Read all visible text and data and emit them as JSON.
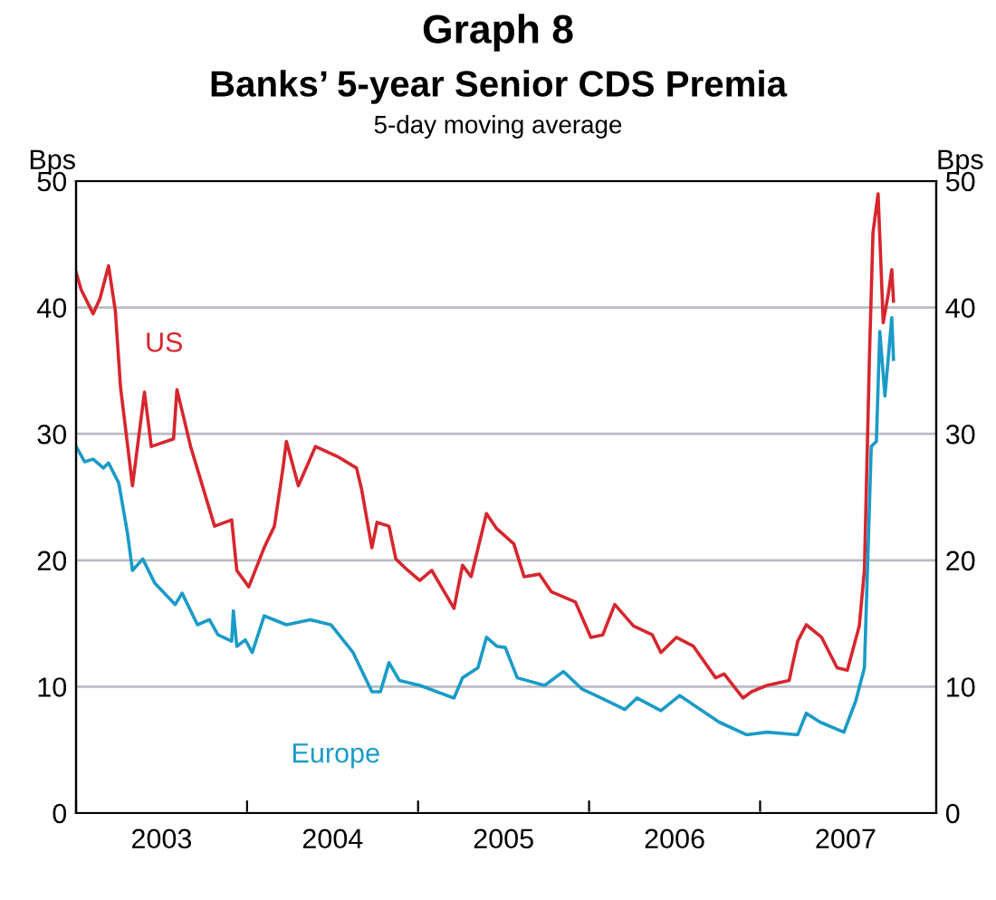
{
  "chart_data": {
    "type": "line",
    "title": "Graph 8",
    "subtitle": "Banks’ 5-year Senior CDS Premia",
    "annotations": [
      "5-day moving average"
    ],
    "ylabel": "Bps",
    "y2label": "Bps",
    "xlim": [
      2003,
      2008.03
    ],
    "xticks": [
      {
        "value": 2003,
        "label": null
      },
      {
        "value": 2003.5,
        "label": "2003"
      },
      {
        "value": 2004,
        "label": null
      },
      {
        "value": 2004.5,
        "label": "2004"
      },
      {
        "value": 2005,
        "label": null
      },
      {
        "value": 2005.5,
        "label": "2005"
      },
      {
        "value": 2006,
        "label": null
      },
      {
        "value": 2006.5,
        "label": "2006"
      },
      {
        "value": 2007,
        "label": null
      },
      {
        "value": 2007.5,
        "label": "2007"
      }
    ],
    "ylim": [
      0,
      50
    ],
    "yticks": [
      0,
      10,
      20,
      30,
      40,
      50
    ],
    "y2lim": [
      0,
      50
    ],
    "y2ticks": [
      0,
      10,
      20,
      30,
      40,
      50
    ],
    "grid": "y",
    "legend": false,
    "series": [
      {
        "name": "US",
        "color": "#d7262e",
        "x": [
          2003.0,
          2003.03,
          2003.1,
          2003.14,
          2003.19,
          2003.23,
          2003.26,
          2003.33,
          2003.4,
          2003.44,
          2003.57,
          2003.59,
          2003.67,
          2003.81,
          2003.91,
          2003.94,
          2004.01,
          2004.1,
          2004.16,
          2004.21,
          2004.23,
          2004.3,
          2004.4,
          2004.53,
          2004.64,
          2004.67,
          2004.73,
          2004.76,
          2004.83,
          2004.87,
          2004.94,
          2005.01,
          2005.08,
          2005.21,
          2005.26,
          2005.31,
          2005.4,
          2005.46,
          2005.56,
          2005.62,
          2005.71,
          2005.78,
          2005.92,
          2006.01,
          2006.08,
          2006.15,
          2006.26,
          2006.37,
          2006.42,
          2006.51,
          2006.61,
          2006.74,
          2006.79,
          2006.9,
          2006.95,
          2007.04,
          2007.17,
          2007.22,
          2007.27,
          2007.36,
          2007.45,
          2007.51,
          2007.58,
          2007.61,
          2007.64,
          2007.66,
          2007.69,
          2007.72,
          2007.75,
          2007.77,
          2007.78
        ],
        "values": [
          42.8,
          41.4,
          39.5,
          40.7,
          43.3,
          39.7,
          33.7,
          25.9,
          33.3,
          29.0,
          29.6,
          33.5,
          29.0,
          22.7,
          23.2,
          19.2,
          17.9,
          21.0,
          22.7,
          27.3,
          29.4,
          25.9,
          29.0,
          28.2,
          27.3,
          25.6,
          21.0,
          23.0,
          22.7,
          20.1,
          19.2,
          18.4,
          19.2,
          16.2,
          19.6,
          18.7,
          23.7,
          22.5,
          21.3,
          18.7,
          18.9,
          17.5,
          16.7,
          13.9,
          14.1,
          16.5,
          14.8,
          14.1,
          12.7,
          13.9,
          13.2,
          10.7,
          11.0,
          9.1,
          9.6,
          10.1,
          10.5,
          13.6,
          14.9,
          13.9,
          11.5,
          11.3,
          14.8,
          19.2,
          36.4,
          45.9,
          49.0,
          38.8,
          41.1,
          43.0,
          40.5
        ]
      },
      {
        "name": "Europe",
        "color": "#1a9bc7",
        "x": [
          2003.0,
          2003.05,
          2003.1,
          2003.16,
          2003.19,
          2003.25,
          2003.3,
          2003.33,
          2003.39,
          2003.46,
          2003.58,
          2003.62,
          2003.71,
          2003.78,
          2003.83,
          2003.91,
          2003.92,
          2003.94,
          2003.99,
          2004.03,
          2004.1,
          2004.23,
          2004.37,
          2004.49,
          2004.62,
          2004.73,
          2004.78,
          2004.83,
          2004.89,
          2005.01,
          2005.21,
          2005.26,
          2005.35,
          2005.4,
          2005.46,
          2005.51,
          2005.58,
          2005.74,
          2005.85,
          2005.96,
          2006.04,
          2006.21,
          2006.28,
          2006.42,
          2006.53,
          2006.65,
          2006.76,
          2006.92,
          2007.04,
          2007.22,
          2007.27,
          2007.35,
          2007.49,
          2007.56,
          2007.61,
          2007.65,
          2007.68,
          2007.7,
          2007.73,
          2007.77,
          2007.78
        ],
        "values": [
          29.0,
          27.8,
          28.0,
          27.3,
          27.7,
          26.1,
          22.2,
          19.2,
          20.1,
          18.2,
          16.5,
          17.4,
          14.9,
          15.3,
          14.1,
          13.6,
          16.0,
          13.2,
          13.7,
          12.7,
          15.6,
          14.9,
          15.3,
          14.9,
          12.7,
          9.6,
          9.6,
          11.9,
          10.5,
          10.1,
          9.1,
          10.7,
          11.5,
          13.9,
          13.2,
          13.1,
          10.7,
          10.1,
          11.2,
          9.8,
          9.3,
          8.2,
          9.1,
          8.1,
          9.3,
          8.2,
          7.2,
          6.2,
          6.4,
          6.2,
          7.9,
          7.2,
          6.4,
          8.9,
          11.5,
          29.0,
          29.4,
          38.1,
          33.0,
          39.2,
          35.9
        ]
      }
    ]
  }
}
